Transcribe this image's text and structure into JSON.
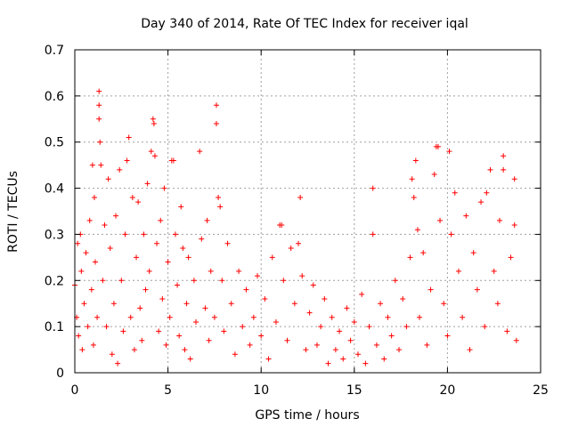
{
  "chart_data": {
    "type": "scatter",
    "title": "Day 340 of 2014, Rate Of TEC Index for receiver iqal",
    "xlabel": "GPS time / hours",
    "ylabel": "ROTI / TECUs",
    "xlim": [
      0,
      25
    ],
    "ylim": [
      0,
      0.7
    ],
    "xticks": [
      0,
      5,
      10,
      15,
      20,
      25
    ],
    "xtick_labels": [
      "0",
      "5",
      "10",
      "15",
      "20",
      "25"
    ],
    "yticks": [
      0,
      0.1,
      0.2,
      0.3,
      0.4,
      0.5,
      0.6,
      0.7
    ],
    "ytick_labels": [
      "0",
      "0.1",
      "0.2",
      "0.3",
      "0.4",
      "0.5",
      "0.6",
      "0.7"
    ],
    "grid": true,
    "marker": "plus",
    "color": "#ff0000",
    "series": [
      {
        "name": "ROTI",
        "points": [
          [
            0.0,
            0.19
          ],
          [
            0.1,
            0.12
          ],
          [
            0.15,
            0.28
          ],
          [
            0.2,
            0.08
          ],
          [
            0.3,
            0.3
          ],
          [
            0.35,
            0.22
          ],
          [
            0.4,
            0.05
          ],
          [
            0.5,
            0.15
          ],
          [
            0.6,
            0.26
          ],
          [
            0.7,
            0.1
          ],
          [
            0.8,
            0.33
          ],
          [
            0.9,
            0.18
          ],
          [
            0.95,
            0.45
          ],
          [
            1.0,
            0.06
          ],
          [
            1.05,
            0.38
          ],
          [
            1.1,
            0.24
          ],
          [
            1.2,
            0.12
          ],
          [
            1.3,
            0.61
          ],
          [
            1.3,
            0.58
          ],
          [
            1.3,
            0.55
          ],
          [
            1.35,
            0.5
          ],
          [
            1.4,
            0.45
          ],
          [
            1.5,
            0.2
          ],
          [
            1.6,
            0.32
          ],
          [
            1.7,
            0.1
          ],
          [
            1.8,
            0.42
          ],
          [
            1.9,
            0.27
          ],
          [
            2.0,
            0.04
          ],
          [
            2.1,
            0.15
          ],
          [
            2.2,
            0.34
          ],
          [
            2.3,
            0.02
          ],
          [
            2.4,
            0.44
          ],
          [
            2.5,
            0.2
          ],
          [
            2.6,
            0.09
          ],
          [
            2.7,
            0.3
          ],
          [
            2.8,
            0.46
          ],
          [
            2.9,
            0.51
          ],
          [
            3.0,
            0.12
          ],
          [
            3.1,
            0.38
          ],
          [
            3.2,
            0.05
          ],
          [
            3.3,
            0.25
          ],
          [
            3.4,
            0.37
          ],
          [
            3.5,
            0.14
          ],
          [
            3.6,
            0.07
          ],
          [
            3.7,
            0.3
          ],
          [
            3.8,
            0.18
          ],
          [
            3.9,
            0.41
          ],
          [
            4.0,
            0.22
          ],
          [
            4.1,
            0.48
          ],
          [
            4.2,
            0.55
          ],
          [
            4.25,
            0.54
          ],
          [
            4.3,
            0.47
          ],
          [
            4.4,
            0.28
          ],
          [
            4.5,
            0.09
          ],
          [
            4.6,
            0.33
          ],
          [
            4.7,
            0.16
          ],
          [
            4.8,
            0.4
          ],
          [
            4.9,
            0.06
          ],
          [
            5.0,
            0.24
          ],
          [
            5.1,
            0.12
          ],
          [
            5.2,
            0.46
          ],
          [
            5.3,
            0.46
          ],
          [
            5.4,
            0.3
          ],
          [
            5.5,
            0.19
          ],
          [
            5.6,
            0.08
          ],
          [
            5.7,
            0.36
          ],
          [
            5.8,
            0.27
          ],
          [
            5.9,
            0.05
          ],
          [
            6.0,
            0.15
          ],
          [
            6.1,
            0.25
          ],
          [
            6.2,
            0.03
          ],
          [
            6.4,
            0.2
          ],
          [
            6.5,
            0.11
          ],
          [
            6.7,
            0.48
          ],
          [
            6.8,
            0.29
          ],
          [
            7.0,
            0.14
          ],
          [
            7.1,
            0.33
          ],
          [
            7.2,
            0.07
          ],
          [
            7.3,
            0.22
          ],
          [
            7.5,
            0.12
          ],
          [
            7.6,
            0.58
          ],
          [
            7.6,
            0.54
          ],
          [
            7.7,
            0.38
          ],
          [
            7.8,
            0.36
          ],
          [
            7.9,
            0.2
          ],
          [
            8.0,
            0.09
          ],
          [
            8.2,
            0.28
          ],
          [
            8.4,
            0.15
          ],
          [
            8.6,
            0.04
          ],
          [
            8.8,
            0.22
          ],
          [
            9.0,
            0.1
          ],
          [
            9.2,
            0.18
          ],
          [
            9.4,
            0.06
          ],
          [
            9.6,
            0.12
          ],
          [
            9.8,
            0.21
          ],
          [
            10.0,
            0.08
          ],
          [
            10.2,
            0.16
          ],
          [
            10.4,
            0.03
          ],
          [
            10.6,
            0.25
          ],
          [
            10.8,
            0.11
          ],
          [
            11.0,
            0.32
          ],
          [
            11.1,
            0.32
          ],
          [
            11.2,
            0.2
          ],
          [
            11.4,
            0.07
          ],
          [
            11.6,
            0.27
          ],
          [
            11.8,
            0.15
          ],
          [
            12.0,
            0.28
          ],
          [
            12.1,
            0.38
          ],
          [
            12.2,
            0.21
          ],
          [
            12.4,
            0.05
          ],
          [
            12.6,
            0.13
          ],
          [
            12.8,
            0.19
          ],
          [
            13.0,
            0.06
          ],
          [
            13.2,
            0.1
          ],
          [
            13.4,
            0.16
          ],
          [
            13.6,
            0.02
          ],
          [
            13.8,
            0.12
          ],
          [
            14.0,
            0.05
          ],
          [
            14.2,
            0.09
          ],
          [
            14.4,
            0.03
          ],
          [
            14.6,
            0.14
          ],
          [
            14.8,
            0.07
          ],
          [
            15.0,
            0.11
          ],
          [
            15.2,
            0.04
          ],
          [
            15.4,
            0.17
          ],
          [
            15.6,
            0.02
          ],
          [
            15.8,
            0.1
          ],
          [
            16.0,
            0.4
          ],
          [
            16.0,
            0.3
          ],
          [
            16.2,
            0.06
          ],
          [
            16.4,
            0.15
          ],
          [
            16.6,
            0.03
          ],
          [
            16.8,
            0.12
          ],
          [
            17.0,
            0.08
          ],
          [
            17.2,
            0.2
          ],
          [
            17.4,
            0.05
          ],
          [
            17.6,
            0.16
          ],
          [
            17.8,
            0.1
          ],
          [
            18.0,
            0.25
          ],
          [
            18.1,
            0.42
          ],
          [
            18.2,
            0.38
          ],
          [
            18.3,
            0.46
          ],
          [
            18.4,
            0.31
          ],
          [
            18.5,
            0.12
          ],
          [
            18.7,
            0.26
          ],
          [
            18.9,
            0.06
          ],
          [
            19.1,
            0.18
          ],
          [
            19.3,
            0.43
          ],
          [
            19.4,
            0.49
          ],
          [
            19.5,
            0.49
          ],
          [
            19.6,
            0.33
          ],
          [
            19.8,
            0.15
          ],
          [
            20.0,
            0.08
          ],
          [
            20.1,
            0.48
          ],
          [
            20.2,
            0.3
          ],
          [
            20.4,
            0.39
          ],
          [
            20.6,
            0.22
          ],
          [
            20.8,
            0.12
          ],
          [
            21.0,
            0.34
          ],
          [
            21.2,
            0.05
          ],
          [
            21.4,
            0.26
          ],
          [
            21.6,
            0.18
          ],
          [
            21.8,
            0.37
          ],
          [
            22.0,
            0.1
          ],
          [
            22.1,
            0.39
          ],
          [
            22.3,
            0.44
          ],
          [
            22.5,
            0.22
          ],
          [
            22.7,
            0.15
          ],
          [
            22.8,
            0.33
          ],
          [
            23.0,
            0.47
          ],
          [
            23.0,
            0.44
          ],
          [
            23.2,
            0.09
          ],
          [
            23.4,
            0.25
          ],
          [
            23.6,
            0.42
          ],
          [
            23.6,
            0.32
          ],
          [
            23.7,
            0.07
          ]
        ]
      }
    ]
  }
}
